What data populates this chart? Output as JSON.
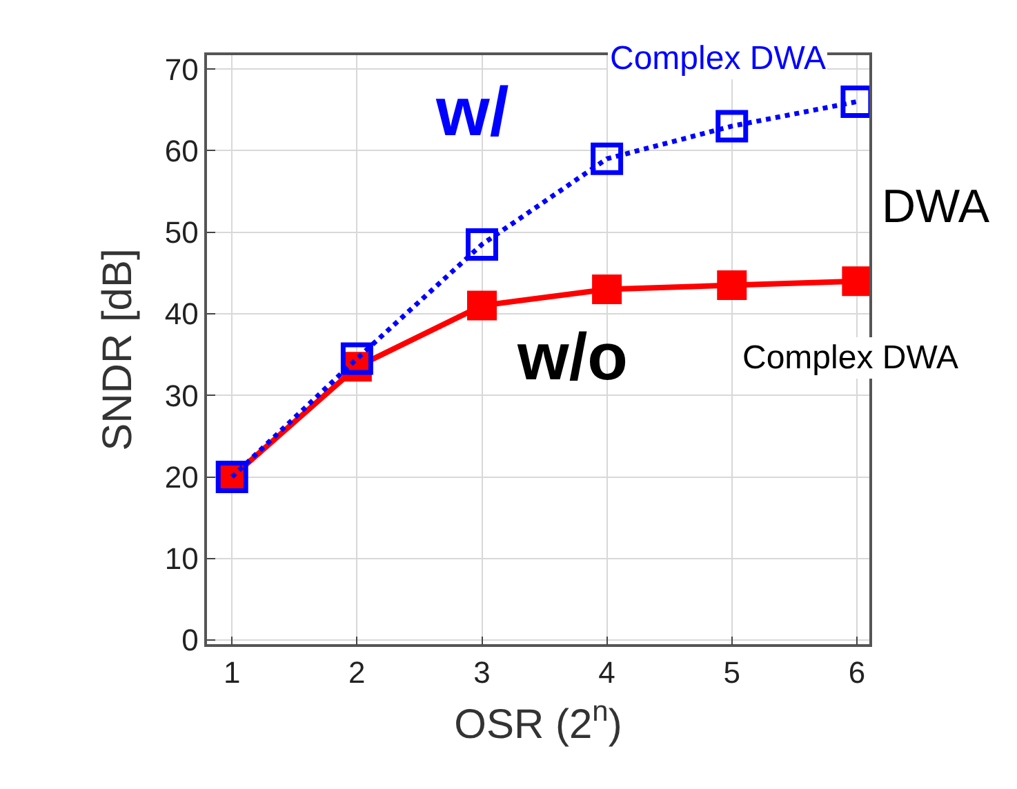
{
  "chart_data": {
    "type": "line",
    "xlabel": "OSR (2$^{n}$)",
    "ylabel": "SNDR [dB]",
    "x": [
      1,
      2,
      3,
      4,
      5,
      6
    ],
    "series": [
      {
        "color": "#ff0000",
        "values": [
          20,
          33.5,
          41,
          43,
          43.5,
          44
        ],
        "line_style": "solid",
        "marker": "square"
      },
      {
        "color": "#0000ff",
        "values": [
          20,
          34.5,
          48.5,
          59,
          63,
          66
        ],
        "line_style": "dotted",
        "marker": "square-open"
      }
    ],
    "xlim": [
      0.8,
      6.1
    ],
    "ylim": [
      -0.5,
      71.7
    ],
    "xticks": [
      1,
      2,
      3,
      4,
      5,
      6
    ],
    "yticks": [
      0,
      10,
      20,
      30,
      40,
      50,
      60,
      70
    ],
    "grid": true,
    "annotations": [
      "w/",
      "Complex DWA",
      "DWA",
      "w/o",
      "Complex DWA"
    ]
  }
}
